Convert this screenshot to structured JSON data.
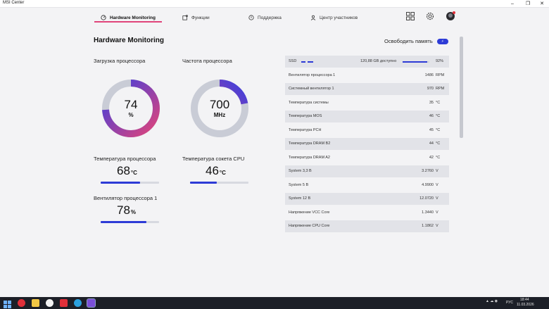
{
  "window": {
    "title": "MSI Center",
    "minimize": "–",
    "maximize": "❐",
    "close": "✕"
  },
  "nav": {
    "items": [
      {
        "label": "Hardware Monitoring",
        "icon": "gauge-icon"
      },
      {
        "label": "Функции",
        "icon": "puzzle-icon"
      },
      {
        "label": "Поддержка",
        "icon": "support-icon"
      },
      {
        "label": "Центр участников",
        "icon": "user-icon"
      }
    ],
    "right_icons": [
      "grid-icon",
      "settings-icon",
      "avatar"
    ]
  },
  "panel": {
    "title": "Hardware Monitoring",
    "free_memory_label": "Освободить память",
    "free_memory_icon": "lightning-icon"
  },
  "gauges": {
    "cpu_load": {
      "label": "Загрузка процессора",
      "value": "74",
      "unit": "%",
      "fraction": 0.74
    },
    "cpu_freq": {
      "label": "Частота процессора",
      "value": "700",
      "unit": "MHz",
      "fraction": 0.22
    }
  },
  "stats": {
    "cpu_temp": {
      "label": "Температура процессора",
      "value": "68",
      "unit": "°C",
      "fraction": 0.68
    },
    "socket_temp": {
      "label": "Температура сокета CPU",
      "value": "46",
      "unit": "°C",
      "fraction": 0.46
    },
    "cpu_fan": {
      "label": "Вентилятор процессора 1",
      "value": "78",
      "unit": "%",
      "fraction": 0.78
    }
  },
  "table": {
    "ssd": {
      "name": "SSD",
      "value": "120,88 GB доступно",
      "percent": "92%",
      "fraction": 0.92
    },
    "rows": [
      {
        "name": "Вентилятор процессора 1",
        "value": "1486",
        "unit": "RPM"
      },
      {
        "name": "Системный вентилятор 1",
        "value": "970",
        "unit": "RPM"
      },
      {
        "name": "Температура системы",
        "value": "35",
        "unit": "°C"
      },
      {
        "name": "Температура MOS",
        "value": "46",
        "unit": "°C"
      },
      {
        "name": "Температура PCH",
        "value": "45",
        "unit": "°C"
      },
      {
        "name": "Температура DRAM B2",
        "value": "44",
        "unit": "°C"
      },
      {
        "name": "Температура DRAM A2",
        "value": "42",
        "unit": "°C"
      },
      {
        "name": "System 3,3 В",
        "value": "3.2760",
        "unit": "V"
      },
      {
        "name": "System 5 В",
        "value": "4.9900",
        "unit": "V"
      },
      {
        "name": "System 12 В",
        "value": "12.0720",
        "unit": "V"
      },
      {
        "name": "Напряжение VCC Core",
        "value": "1.3440",
        "unit": "V"
      },
      {
        "name": "Напряжение CPU Core",
        "value": "1.1862",
        "unit": "V"
      }
    ]
  },
  "colors": {
    "accent": "#2d3bd6",
    "accent_pink": "#e0447a",
    "gauge_track": "#c9ccd6"
  },
  "taskbar": {
    "tray_lang": "РУС",
    "time": "18:44",
    "date": "11.03.2026"
  }
}
